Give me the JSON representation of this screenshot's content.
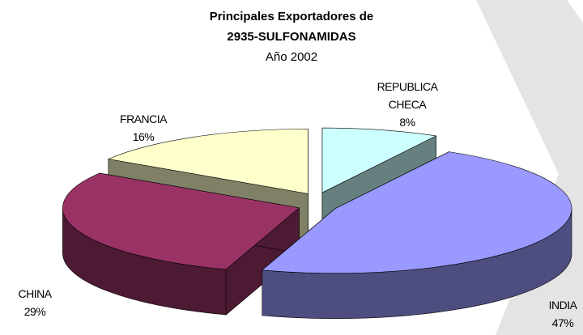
{
  "chart_data": {
    "type": "pie3d",
    "title": "Principales Exportadores de",
    "subtitle": "2935-SULFONAMIDAS",
    "subtitle2": "Año 2002",
    "categories": [
      "REPUBLICA CHECA",
      "INDIA",
      "CHINA",
      "FRANCIA"
    ],
    "values": [
      8,
      47,
      29,
      16
    ],
    "value_labels": [
      "8%",
      "47%",
      "29%",
      "16%"
    ],
    "colors": [
      "#ccffff",
      "#9999ff",
      "#993366",
      "#ffffcc"
    ]
  }
}
